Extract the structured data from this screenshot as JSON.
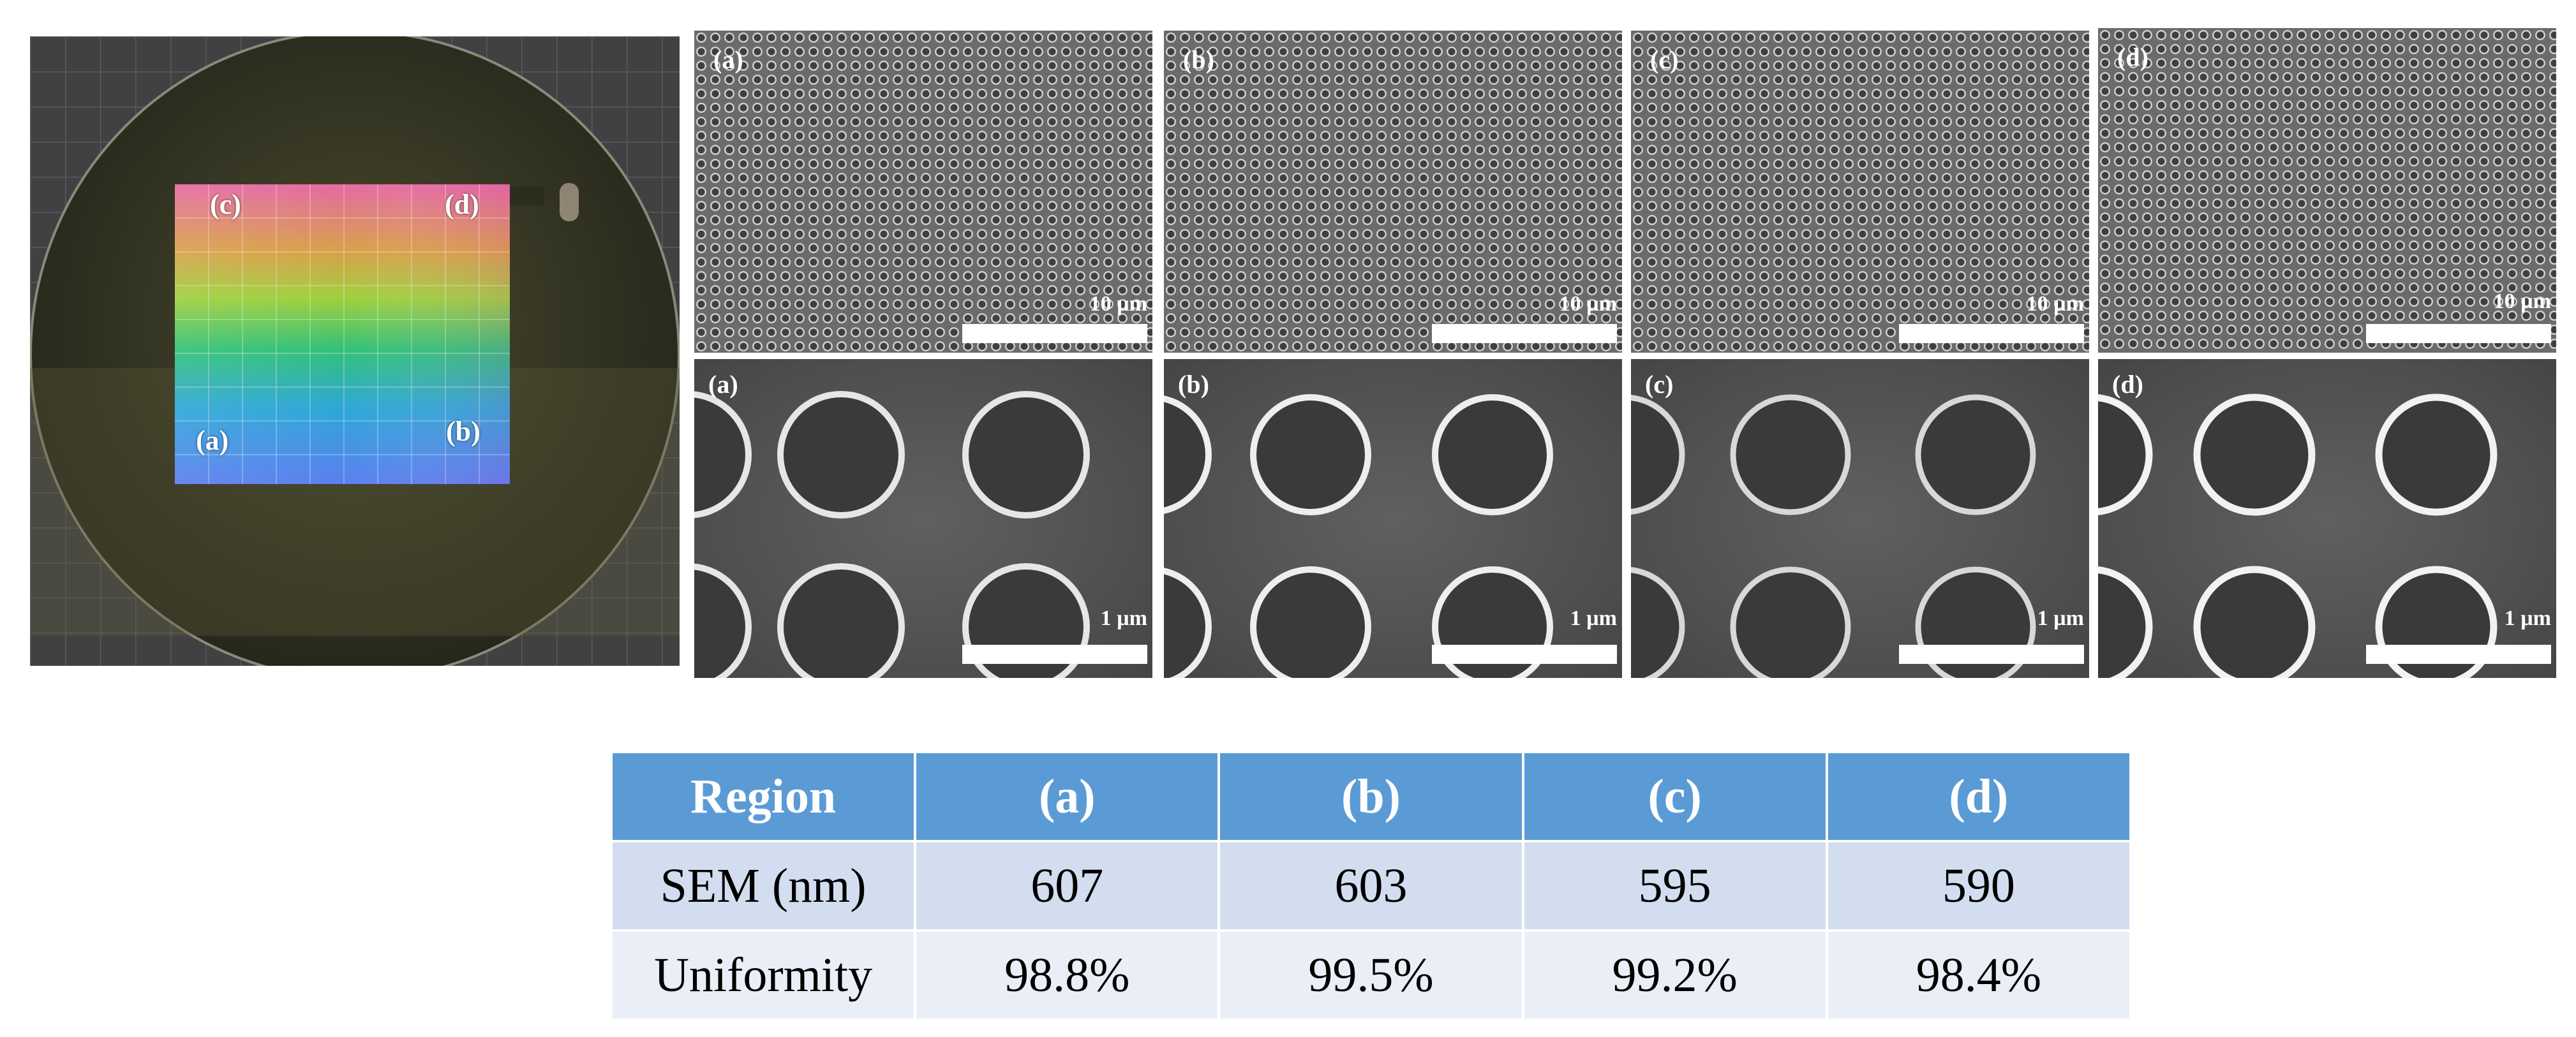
{
  "photo": {
    "labels": {
      "a": "(a)",
      "b": "(b)",
      "c": "(c)",
      "d": "(d)"
    }
  },
  "sem_panels": {
    "top": [
      {
        "label": "(a)",
        "scale": "10 µm"
      },
      {
        "label": "(b)",
        "scale": "10 µm"
      },
      {
        "label": "(c)",
        "scale": "10 µm"
      },
      {
        "label": "(d)",
        "scale": "10 µm"
      }
    ],
    "bottom": [
      {
        "label": "(a)",
        "scale": "1 µm"
      },
      {
        "label": "(b)",
        "scale": "1 µm"
      },
      {
        "label": "(c)",
        "scale": "1 µm"
      },
      {
        "label": "(d)",
        "scale": "1 µm"
      }
    ]
  },
  "table": {
    "headers": [
      "Region",
      "(a)",
      "(b)",
      "(c)",
      "(d)"
    ],
    "rows": [
      {
        "label": "SEM (nm)",
        "values": [
          "607",
          "603",
          "595",
          "590"
        ]
      },
      {
        "label": "Uniformity",
        "values": [
          "98.8%",
          "99.5%",
          "99.2%",
          "98.4%"
        ]
      }
    ]
  }
}
